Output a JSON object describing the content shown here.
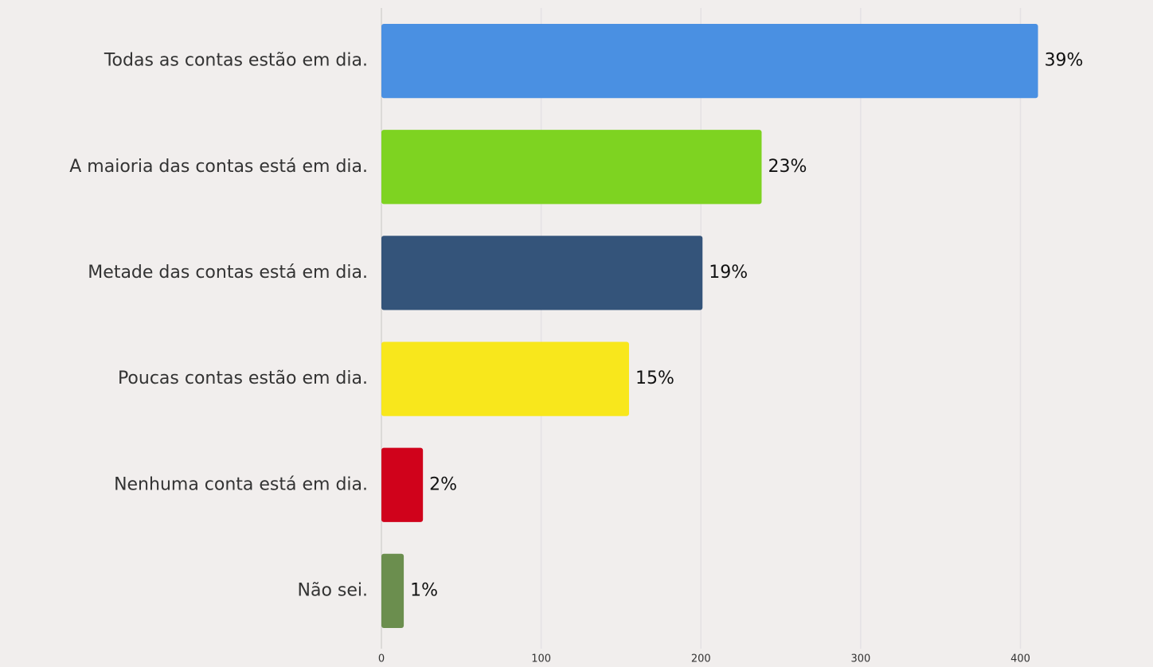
{
  "chart_data": {
    "type": "barh",
    "categories": [
      "Todas as contas estão em dia.",
      "A maioria das contas está em dia.",
      "Metade das contas está em dia.",
      "Poucas contas estão em dia.",
      "Nenhuma conta está em dia.",
      "Não sei."
    ],
    "values": [
      411,
      238,
      201,
      155,
      26,
      14
    ],
    "value_labels": [
      "39%",
      "23%",
      "19%",
      "15%",
      "2%",
      "1%"
    ],
    "colors": [
      "#4a90e2",
      "#7ed321",
      "#34547a",
      "#f8e71c",
      "#d0021b",
      "#6b8e4e"
    ],
    "xlim": [
      0,
      480
    ],
    "xticks": [
      0,
      100,
      200,
      300,
      400
    ],
    "grid": true
  }
}
